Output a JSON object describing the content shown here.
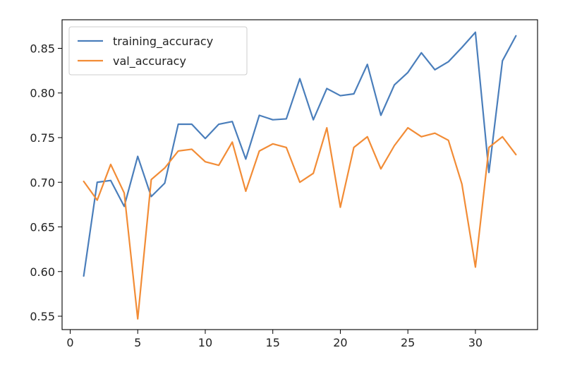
{
  "chart_data": {
    "type": "line",
    "title": "",
    "xlabel": "",
    "ylabel": "",
    "xlim": [
      -0.6,
      34.6
    ],
    "ylim": [
      0.535,
      0.882
    ],
    "xticks": [
      0,
      5,
      10,
      15,
      20,
      25,
      30
    ],
    "yticks": [
      0.55,
      0.6,
      0.65,
      0.7,
      0.75,
      0.8,
      0.85
    ],
    "x": [
      1,
      2,
      3,
      4,
      5,
      6,
      7,
      8,
      9,
      10,
      11,
      12,
      13,
      14,
      15,
      16,
      17,
      18,
      19,
      20,
      21,
      22,
      23,
      24,
      25,
      26,
      27,
      28,
      29,
      30,
      31,
      32,
      33
    ],
    "legend_position": "upper-left",
    "series": [
      {
        "name": "training_accuracy",
        "color": "#4a7ebb",
        "values": [
          0.595,
          0.7,
          0.702,
          0.673,
          0.729,
          0.684,
          0.699,
          0.765,
          0.765,
          0.749,
          0.765,
          0.768,
          0.726,
          0.775,
          0.77,
          0.771,
          0.816,
          0.77,
          0.805,
          0.797,
          0.799,
          0.832,
          0.775,
          0.809,
          0.823,
          0.845,
          0.826,
          0.835,
          0.851,
          0.868,
          0.711,
          0.836,
          0.864
        ]
      },
      {
        "name": "val_accuracy",
        "color": "#f28c36",
        "values": [
          0.701,
          0.68,
          0.72,
          0.688,
          0.547,
          0.703,
          0.716,
          0.735,
          0.737,
          0.723,
          0.719,
          0.745,
          0.69,
          0.735,
          0.743,
          0.739,
          0.7,
          0.71,
          0.761,
          0.672,
          0.739,
          0.751,
          0.715,
          0.741,
          0.761,
          0.751,
          0.755,
          0.747,
          0.698,
          0.605,
          0.739,
          0.751,
          0.731
        ]
      }
    ]
  }
}
